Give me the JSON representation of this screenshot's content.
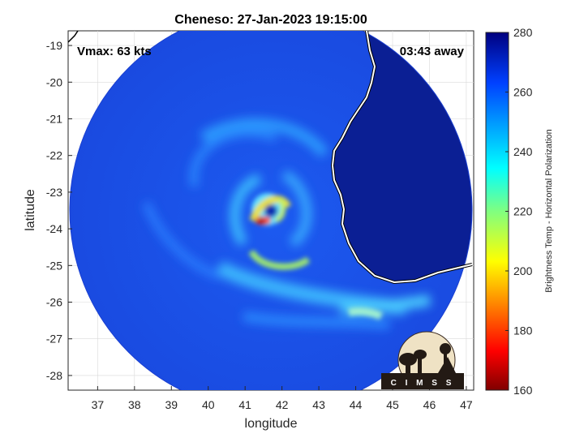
{
  "chart_data": {
    "type": "heatmap",
    "title": "Cheneso: 27-Jan-2023 19:15:00",
    "xlabel": "longitude",
    "ylabel": "latitude",
    "xlim": [
      36.2,
      47.2
    ],
    "ylim": [
      -28.4,
      -18.6
    ],
    "x_ticks": [
      37,
      38,
      39,
      40,
      41,
      42,
      43,
      44,
      45,
      46,
      47
    ],
    "y_ticks": [
      -19,
      -20,
      -21,
      -22,
      -23,
      -24,
      -25,
      -26,
      -27,
      -28
    ],
    "grid": true,
    "storm_center": {
      "lon": 41.6,
      "lat": -23.6
    },
    "annotations": {
      "vmax": "Vmax: 63 kts",
      "time_away": "03:43 away"
    },
    "colorbar": {
      "label": "Brightness Temp - Horizontal Polarization",
      "range": [
        160,
        280
      ],
      "ticks": [
        280,
        260,
        240,
        220,
        200,
        180,
        160
      ],
      "colormap": "jet"
    },
    "logo": {
      "text": "C I M S S"
    }
  },
  "colors": {
    "ocean": "#1a4fe0",
    "land": "#0a1e8c",
    "coast": "#ffffff"
  }
}
